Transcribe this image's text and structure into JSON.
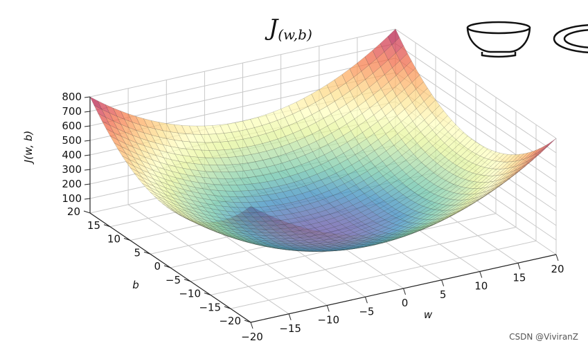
{
  "title": {
    "main": "J",
    "sub": "(w,b)"
  },
  "watermark": "CSDN @ViviranZ",
  "icons": [
    "bowl-icon",
    "plate-icon"
  ],
  "chart_data": {
    "type": "surface3d",
    "function": "J(w,b) = w^2 + b^2 (paraboloid cost surface)",
    "zlabel": "J(w, b)",
    "xlabel": "w",
    "ylabel": "b",
    "xlim": [
      -20,
      20
    ],
    "ylim": [
      -20,
      20
    ],
    "zlim": [
      0,
      800
    ],
    "xticks": [
      "−20",
      "−15",
      "−10",
      "−5",
      "0",
      "5",
      "10",
      "15",
      "20"
    ],
    "yticks": [
      "−20",
      "−15",
      "−10",
      "−5",
      "0",
      "5",
      "10",
      "15",
      "20"
    ],
    "zticks": [
      "100",
      "200",
      "300",
      "400",
      "500",
      "600",
      "700",
      "800"
    ],
    "colormap": "Spectral_r",
    "grid": true,
    "surface_min": 0,
    "surface_max": 800
  }
}
